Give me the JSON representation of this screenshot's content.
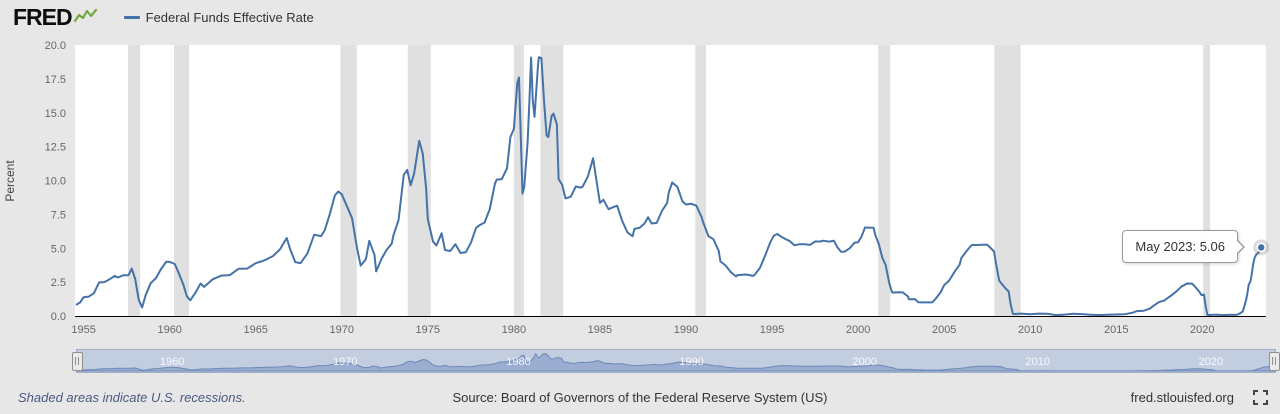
{
  "header": {
    "logo": "FRED",
    "legend_label": "Federal Funds Effective Rate"
  },
  "tooltip": {
    "text": "May 2023: 5.06"
  },
  "footer": {
    "recession_note": "Shaded areas indicate U.S. recessions.",
    "source": "Source: Board of Governors of the Federal Reserve System (US)",
    "site": "fred.stlouisfed.org"
  },
  "colors": {
    "line": "#4572a7",
    "recession": "#e0e0e0",
    "background": "#e7e7e7",
    "plot_bg": "#ffffff",
    "nav_bg": "#c3cde0",
    "nav_fill": "rgba(122,148,195,0.55)",
    "nav_line": "#6d89b8",
    "logo_green": "#6fa83f",
    "tick_text": "#666666"
  },
  "chart_data": {
    "type": "line",
    "title": "Federal Funds Effective Rate",
    "xlabel": "",
    "ylabel": "Percent",
    "ylim": [
      0,
      20
    ],
    "yticks": [
      0,
      2.5,
      5,
      7.5,
      10,
      12.5,
      15,
      17.5,
      20
    ],
    "xlim": [
      1954.5,
      2023.7
    ],
    "xticks": [
      1955,
      1960,
      1965,
      1970,
      1975,
      1980,
      1985,
      1990,
      1995,
      2000,
      2005,
      2010,
      2015,
      2020
    ],
    "nav_xticks": [
      1960,
      1970,
      1980,
      1990,
      2000,
      2010,
      2020
    ],
    "grid": false,
    "legend_position": "top-left",
    "last_point": {
      "label": "May 2023",
      "value": 5.06
    },
    "recessions": [
      [
        1957.58,
        1958.29
      ],
      [
        1960.25,
        1961.12
      ],
      [
        1969.92,
        1970.87
      ],
      [
        1973.83,
        1975.17
      ],
      [
        1980.0,
        1980.58
      ],
      [
        1981.54,
        1982.87
      ],
      [
        1990.54,
        1991.17
      ],
      [
        2001.17,
        2001.87
      ],
      [
        2007.92,
        2009.45
      ],
      [
        2020.05,
        2020.45
      ]
    ],
    "series": [
      {
        "name": "Federal Funds Effective Rate",
        "points": [
          [
            1954.6,
            0.85
          ],
          [
            1954.8,
            1.0
          ],
          [
            1955.0,
            1.39
          ],
          [
            1955.3,
            1.43
          ],
          [
            1955.6,
            1.68
          ],
          [
            1955.9,
            2.48
          ],
          [
            1956.2,
            2.5
          ],
          [
            1956.5,
            2.7
          ],
          [
            1956.8,
            2.96
          ],
          [
            1957.0,
            2.84
          ],
          [
            1957.3,
            3.0
          ],
          [
            1957.6,
            3.0
          ],
          [
            1957.8,
            3.5
          ],
          [
            1958.0,
            2.72
          ],
          [
            1958.2,
            1.2
          ],
          [
            1958.4,
            0.63
          ],
          [
            1958.6,
            1.53
          ],
          [
            1958.9,
            2.42
          ],
          [
            1959.2,
            2.8
          ],
          [
            1959.5,
            3.47
          ],
          [
            1959.8,
            4.0
          ],
          [
            1960.0,
            3.99
          ],
          [
            1960.3,
            3.84
          ],
          [
            1960.6,
            2.94
          ],
          [
            1960.8,
            2.3
          ],
          [
            1961.0,
            1.45
          ],
          [
            1961.2,
            1.16
          ],
          [
            1961.5,
            1.73
          ],
          [
            1961.8,
            2.4
          ],
          [
            1962.0,
            2.15
          ],
          [
            1962.5,
            2.71
          ],
          [
            1963.0,
            2.98
          ],
          [
            1963.5,
            3.02
          ],
          [
            1964.0,
            3.48
          ],
          [
            1964.5,
            3.5
          ],
          [
            1965.0,
            3.9
          ],
          [
            1965.5,
            4.1
          ],
          [
            1966.0,
            4.42
          ],
          [
            1966.4,
            4.9
          ],
          [
            1966.8,
            5.76
          ],
          [
            1967.0,
            4.94
          ],
          [
            1967.3,
            3.98
          ],
          [
            1967.6,
            3.9
          ],
          [
            1968.0,
            4.6
          ],
          [
            1968.4,
            6.0
          ],
          [
            1968.8,
            5.9
          ],
          [
            1969.0,
            6.3
          ],
          [
            1969.3,
            7.5
          ],
          [
            1969.6,
            8.9
          ],
          [
            1969.8,
            9.19
          ],
          [
            1970.0,
            8.98
          ],
          [
            1970.3,
            8.1
          ],
          [
            1970.6,
            7.2
          ],
          [
            1970.9,
            4.9
          ],
          [
            1971.1,
            3.72
          ],
          [
            1971.4,
            4.2
          ],
          [
            1971.6,
            5.55
          ],
          [
            1971.9,
            4.5
          ],
          [
            1972.0,
            3.29
          ],
          [
            1972.3,
            4.2
          ],
          [
            1972.6,
            4.87
          ],
          [
            1972.9,
            5.33
          ],
          [
            1973.0,
            5.94
          ],
          [
            1973.3,
            7.1
          ],
          [
            1973.6,
            10.4
          ],
          [
            1973.8,
            10.78
          ],
          [
            1974.0,
            9.65
          ],
          [
            1974.2,
            10.5
          ],
          [
            1974.5,
            12.92
          ],
          [
            1974.7,
            12.0
          ],
          [
            1974.9,
            9.45
          ],
          [
            1975.0,
            7.13
          ],
          [
            1975.3,
            5.5
          ],
          [
            1975.5,
            5.2
          ],
          [
            1975.8,
            6.1
          ],
          [
            1976.0,
            4.87
          ],
          [
            1976.3,
            4.8
          ],
          [
            1976.6,
            5.3
          ],
          [
            1976.9,
            4.65
          ],
          [
            1977.2,
            4.7
          ],
          [
            1977.5,
            5.4
          ],
          [
            1977.8,
            6.5
          ],
          [
            1978.0,
            6.7
          ],
          [
            1978.3,
            6.9
          ],
          [
            1978.6,
            7.9
          ],
          [
            1978.9,
            9.76
          ],
          [
            1979.0,
            10.07
          ],
          [
            1979.3,
            10.1
          ],
          [
            1979.6,
            10.9
          ],
          [
            1979.8,
            13.2
          ],
          [
            1980.0,
            13.82
          ],
          [
            1980.2,
            17.19
          ],
          [
            1980.3,
            17.61
          ],
          [
            1980.5,
            9.03
          ],
          [
            1980.6,
            9.5
          ],
          [
            1980.8,
            12.8
          ],
          [
            1980.9,
            15.85
          ],
          [
            1981.0,
            19.08
          ],
          [
            1981.1,
            15.9
          ],
          [
            1981.2,
            14.7
          ],
          [
            1981.4,
            18.5
          ],
          [
            1981.45,
            19.1
          ],
          [
            1981.6,
            19.04
          ],
          [
            1981.75,
            15.9
          ],
          [
            1981.9,
            13.31
          ],
          [
            1982.0,
            13.22
          ],
          [
            1982.2,
            14.78
          ],
          [
            1982.3,
            14.94
          ],
          [
            1982.5,
            14.15
          ],
          [
            1982.6,
            10.1
          ],
          [
            1982.8,
            9.7
          ],
          [
            1983.0,
            8.68
          ],
          [
            1983.3,
            8.8
          ],
          [
            1983.6,
            9.56
          ],
          [
            1983.9,
            9.47
          ],
          [
            1984.0,
            9.56
          ],
          [
            1984.3,
            10.3
          ],
          [
            1984.6,
            11.64
          ],
          [
            1984.8,
            9.99
          ],
          [
            1985.0,
            8.35
          ],
          [
            1985.2,
            8.58
          ],
          [
            1985.5,
            7.88
          ],
          [
            1985.8,
            8.05
          ],
          [
            1986.0,
            8.14
          ],
          [
            1986.3,
            7.0
          ],
          [
            1986.6,
            6.17
          ],
          [
            1986.9,
            5.89
          ],
          [
            1987.0,
            6.43
          ],
          [
            1987.3,
            6.5
          ],
          [
            1987.6,
            6.85
          ],
          [
            1987.8,
            7.29
          ],
          [
            1988.0,
            6.83
          ],
          [
            1988.3,
            6.87
          ],
          [
            1988.6,
            7.75
          ],
          [
            1988.9,
            8.35
          ],
          [
            1989.0,
            9.12
          ],
          [
            1989.2,
            9.85
          ],
          [
            1989.5,
            9.53
          ],
          [
            1989.8,
            8.45
          ],
          [
            1990.0,
            8.23
          ],
          [
            1990.3,
            8.28
          ],
          [
            1990.6,
            8.15
          ],
          [
            1990.9,
            7.31
          ],
          [
            1991.0,
            6.91
          ],
          [
            1991.3,
            5.9
          ],
          [
            1991.6,
            5.66
          ],
          [
            1991.9,
            4.81
          ],
          [
            1992.0,
            4.03
          ],
          [
            1992.3,
            3.73
          ],
          [
            1992.6,
            3.25
          ],
          [
            1992.9,
            2.92
          ],
          [
            1993.0,
            3.02
          ],
          [
            1993.5,
            3.06
          ],
          [
            1993.9,
            2.96
          ],
          [
            1994.0,
            3.05
          ],
          [
            1994.3,
            3.56
          ],
          [
            1994.6,
            4.47
          ],
          [
            1994.9,
            5.45
          ],
          [
            1995.1,
            5.92
          ],
          [
            1995.3,
            6.05
          ],
          [
            1995.6,
            5.8
          ],
          [
            1995.9,
            5.6
          ],
          [
            1996.0,
            5.56
          ],
          [
            1996.3,
            5.22
          ],
          [
            1996.6,
            5.3
          ],
          [
            1996.9,
            5.29
          ],
          [
            1997.2,
            5.25
          ],
          [
            1997.5,
            5.5
          ],
          [
            1997.8,
            5.5
          ],
          [
            1998.0,
            5.56
          ],
          [
            1998.3,
            5.49
          ],
          [
            1998.6,
            5.55
          ],
          [
            1998.8,
            5.07
          ],
          [
            1999.0,
            4.75
          ],
          [
            1999.2,
            4.74
          ],
          [
            1999.5,
            4.99
          ],
          [
            1999.8,
            5.42
          ],
          [
            2000.0,
            5.45
          ],
          [
            2000.2,
            5.85
          ],
          [
            2000.4,
            6.53
          ],
          [
            2000.7,
            6.52
          ],
          [
            2000.9,
            6.51
          ],
          [
            2001.0,
            5.98
          ],
          [
            2001.2,
            5.31
          ],
          [
            2001.4,
            4.33
          ],
          [
            2001.6,
            3.77
          ],
          [
            2001.8,
            2.49
          ],
          [
            2001.95,
            1.82
          ],
          [
            2002.0,
            1.73
          ],
          [
            2002.3,
            1.75
          ],
          [
            2002.6,
            1.74
          ],
          [
            2002.9,
            1.44
          ],
          [
            2002.95,
            1.24
          ],
          [
            2003.0,
            1.24
          ],
          [
            2003.3,
            1.25
          ],
          [
            2003.5,
            1.01
          ],
          [
            2003.8,
            1.0
          ],
          [
            2004.0,
            1.0
          ],
          [
            2004.3,
            1.0
          ],
          [
            2004.5,
            1.26
          ],
          [
            2004.8,
            1.76
          ],
          [
            2005.0,
            2.28
          ],
          [
            2005.3,
            2.63
          ],
          [
            2005.6,
            3.26
          ],
          [
            2005.9,
            3.78
          ],
          [
            2006.0,
            4.29
          ],
          [
            2006.3,
            4.79
          ],
          [
            2006.6,
            5.24
          ],
          [
            2006.9,
            5.24
          ],
          [
            2007.2,
            5.26
          ],
          [
            2007.5,
            5.26
          ],
          [
            2007.7,
            5.02
          ],
          [
            2007.9,
            4.76
          ],
          [
            2008.0,
            3.94
          ],
          [
            2008.2,
            2.61
          ],
          [
            2008.4,
            2.28
          ],
          [
            2008.6,
            2.0
          ],
          [
            2008.75,
            1.81
          ],
          [
            2008.85,
            0.97
          ],
          [
            2008.95,
            0.39
          ],
          [
            2009.0,
            0.15
          ],
          [
            2009.5,
            0.18
          ],
          [
            2010.0,
            0.13
          ],
          [
            2010.5,
            0.18
          ],
          [
            2011.0,
            0.16
          ],
          [
            2011.5,
            0.07
          ],
          [
            2012.0,
            0.1
          ],
          [
            2012.5,
            0.16
          ],
          [
            2013.0,
            0.14
          ],
          [
            2013.5,
            0.09
          ],
          [
            2014.0,
            0.07
          ],
          [
            2014.5,
            0.09
          ],
          [
            2015.0,
            0.11
          ],
          [
            2015.5,
            0.13
          ],
          [
            2015.95,
            0.24
          ],
          [
            2016.2,
            0.36
          ],
          [
            2016.6,
            0.39
          ],
          [
            2016.95,
            0.54
          ],
          [
            2017.2,
            0.79
          ],
          [
            2017.5,
            1.04
          ],
          [
            2017.8,
            1.15
          ],
          [
            2017.95,
            1.3
          ],
          [
            2018.2,
            1.51
          ],
          [
            2018.5,
            1.82
          ],
          [
            2018.8,
            2.19
          ],
          [
            2018.95,
            2.27
          ],
          [
            2019.1,
            2.4
          ],
          [
            2019.4,
            2.39
          ],
          [
            2019.6,
            2.13
          ],
          [
            2019.8,
            1.83
          ],
          [
            2019.95,
            1.55
          ],
          [
            2020.1,
            1.58
          ],
          [
            2020.2,
            0.65
          ],
          [
            2020.3,
            0.05
          ],
          [
            2020.6,
            0.09
          ],
          [
            2020.9,
            0.09
          ],
          [
            2021.2,
            0.07
          ],
          [
            2021.5,
            0.08
          ],
          [
            2021.8,
            0.08
          ],
          [
            2022.0,
            0.08
          ],
          [
            2022.2,
            0.2
          ],
          [
            2022.35,
            0.33
          ],
          [
            2022.45,
            0.77
          ],
          [
            2022.55,
            1.21
          ],
          [
            2022.62,
            1.68
          ],
          [
            2022.7,
            2.33
          ],
          [
            2022.8,
            2.56
          ],
          [
            2022.87,
            3.08
          ],
          [
            2022.95,
            3.78
          ],
          [
            2023.0,
            4.1
          ],
          [
            2023.05,
            4.33
          ],
          [
            2023.15,
            4.57
          ],
          [
            2023.25,
            4.65
          ],
          [
            2023.33,
            4.83
          ],
          [
            2023.42,
            5.06
          ]
        ]
      }
    ]
  }
}
